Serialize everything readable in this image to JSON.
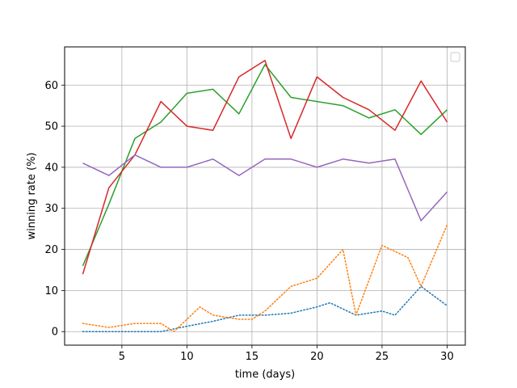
{
  "chart_data": {
    "type": "line",
    "xlabel": "time (days)",
    "ylabel": "winning rate (%)",
    "xlim": [
      0.6,
      31.4
    ],
    "ylim": [
      -3.3,
      69.3
    ],
    "xticks": [
      5,
      10,
      15,
      20,
      25,
      30
    ],
    "yticks": [
      0,
      10,
      20,
      30,
      40,
      50,
      60
    ],
    "grid": true,
    "legend": {
      "position": "top-right",
      "entries": []
    },
    "series": [
      {
        "color": "#1f77b4",
        "style": "dotted",
        "x": [
          2,
          4,
          6,
          8,
          10,
          12,
          14,
          16,
          18,
          20,
          21,
          23,
          25,
          26,
          28,
          30
        ],
        "y": [
          0,
          0,
          0,
          0,
          1.3,
          2.5,
          4,
          4,
          4.5,
          6,
          7,
          4,
          5,
          4,
          11,
          6.3
        ]
      },
      {
        "color": "#ff7f0e",
        "style": "dotted",
        "x": [
          2,
          4,
          6,
          8,
          9,
          11,
          12,
          14,
          15,
          16,
          18,
          20,
          22,
          23,
          25,
          27,
          28,
          30
        ],
        "y": [
          2,
          1,
          2,
          2,
          0,
          6,
          4,
          3,
          3,
          5,
          11,
          13,
          20,
          4,
          21,
          18,
          11,
          26
        ]
      },
      {
        "color": "#2ca02c",
        "style": "solid",
        "x": [
          2,
          4,
          6,
          8,
          10,
          12,
          14,
          16,
          18,
          20,
          22,
          24,
          26,
          28,
          30
        ],
        "y": [
          16,
          31,
          47,
          51,
          58,
          59,
          53,
          65,
          57,
          56,
          55,
          52,
          54,
          48,
          54
        ]
      },
      {
        "color": "#d62728",
        "style": "solid",
        "x": [
          2,
          4,
          6,
          8,
          10,
          12,
          14,
          16,
          18,
          20,
          22,
          24,
          26,
          28,
          30
        ],
        "y": [
          14,
          35,
          43,
          56,
          50,
          49,
          62,
          66,
          47,
          62,
          57,
          54,
          49,
          61,
          51
        ]
      },
      {
        "color": "#9467bd",
        "style": "solid",
        "x": [
          2,
          4,
          6,
          8,
          10,
          12,
          14,
          16,
          18,
          20,
          22,
          24,
          26,
          28,
          30
        ],
        "y": [
          41,
          38,
          43,
          40,
          40,
          42,
          38,
          42,
          42,
          40,
          42,
          41,
          42,
          27,
          34
        ]
      }
    ]
  }
}
